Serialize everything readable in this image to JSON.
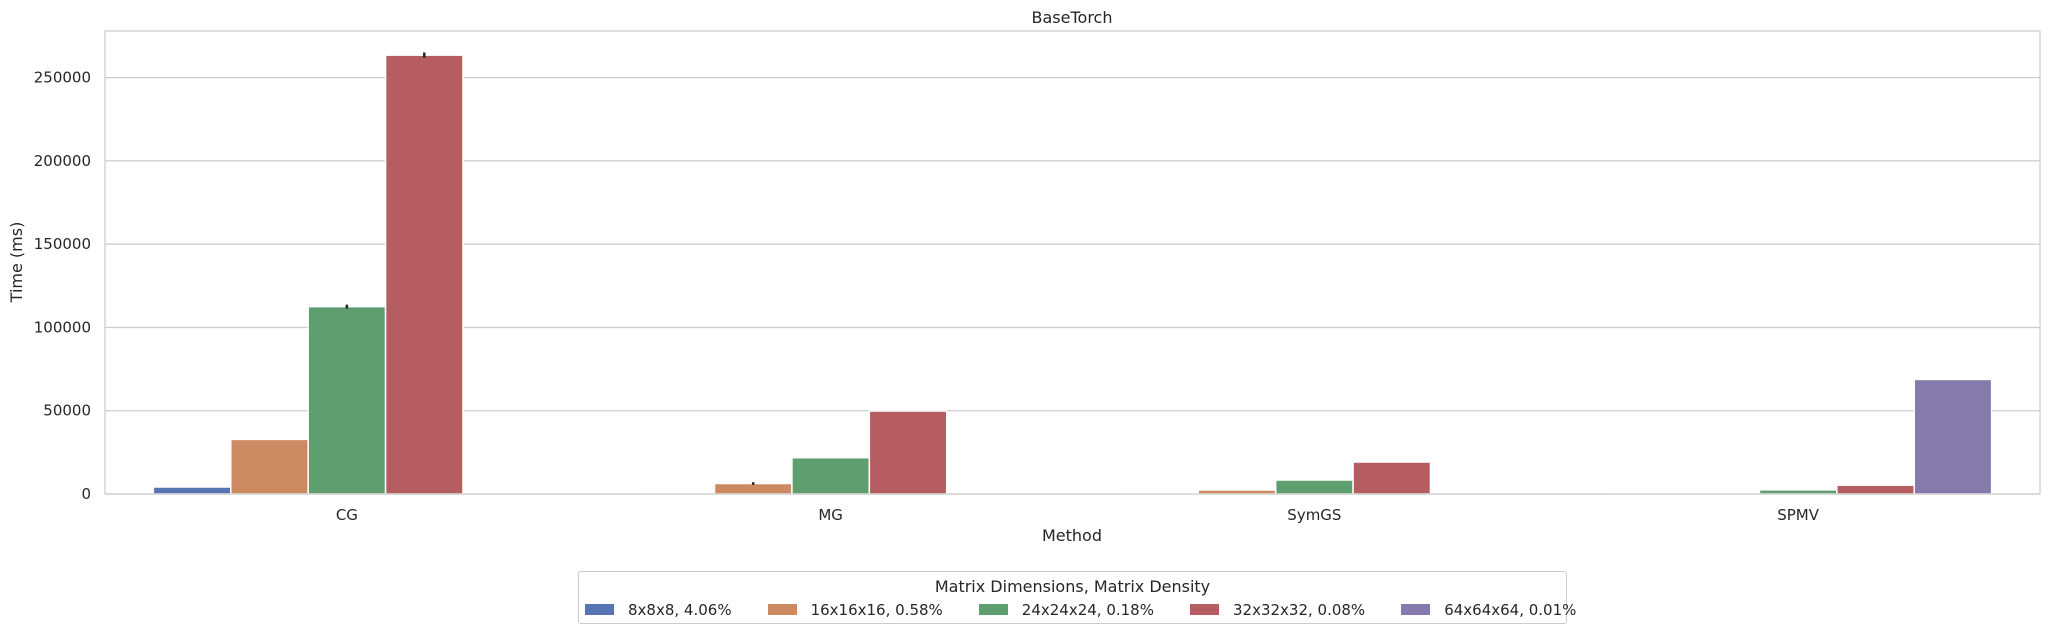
{
  "chart_data": {
    "type": "bar",
    "title": "BaseTorch",
    "xlabel": "Method",
    "ylabel": "Time (ms)",
    "categories": [
      "CG",
      "MG",
      "SymGS",
      "SPMV"
    ],
    "ylim": [
      0,
      278000
    ],
    "yticks": [
      0,
      50000,
      100000,
      150000,
      200000,
      250000
    ],
    "grid": true,
    "legend_title": "Matrix Dimensions, Matrix Density",
    "legend_placement": "bottom-center",
    "series": [
      {
        "name": "8x8x8, 4.06%",
        "color": "#5875b3",
        "values": [
          4200,
          300,
          200,
          100
        ],
        "errors": [
          null,
          null,
          null,
          null
        ]
      },
      {
        "name": "16x16x16, 0.58%",
        "color": "#cd8a62",
        "values": [
          32800,
          6300,
          2400,
          700
        ],
        "errors": [
          null,
          800,
          null,
          null
        ]
      },
      {
        "name": "24x24x24, 0.18%",
        "color": "#5f9e6e",
        "values": [
          112500,
          21800,
          8400,
          2500
        ],
        "errors": [
          1200,
          null,
          null,
          null
        ]
      },
      {
        "name": "32x32x32, 0.08%",
        "color": "#b55d60",
        "values": [
          263500,
          49800,
          19200,
          5300
        ],
        "errors": [
          1600,
          null,
          null,
          null
        ]
      },
      {
        "name": "64x64x64, 0.01%",
        "color": "#857aab",
        "values": [
          null,
          null,
          null,
          68800
        ],
        "errors": [
          null,
          null,
          null,
          null
        ]
      }
    ]
  }
}
